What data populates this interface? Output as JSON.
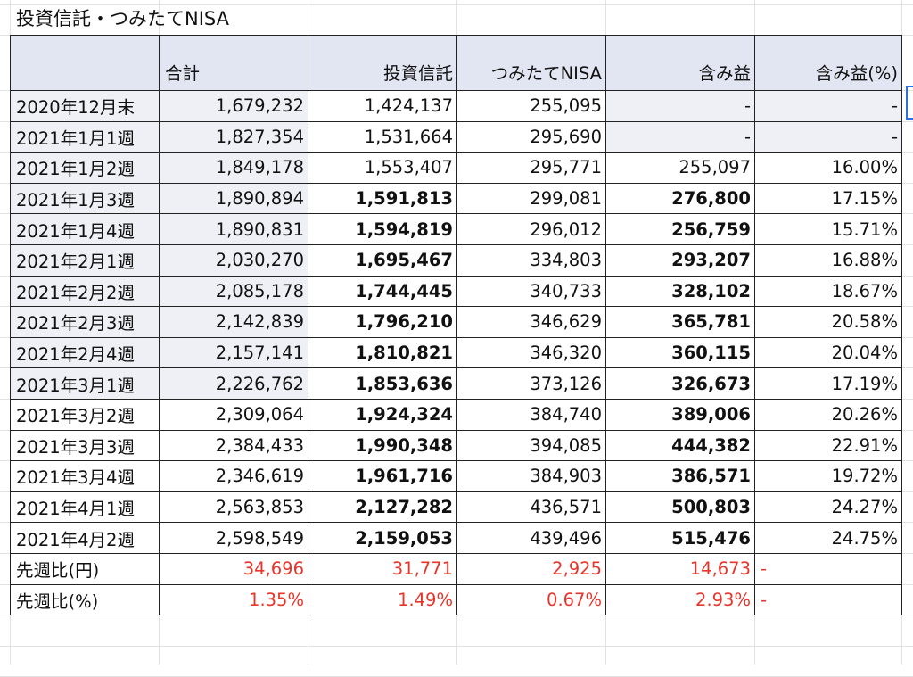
{
  "title": "投資信託・つみたてNISA",
  "headers": [
    "",
    "合計",
    "投資信託",
    "つみたてNISA",
    "含み益",
    "含み益(%)"
  ],
  "rows": [
    {
      "label": "2020年12月末",
      "total": "1,679,232",
      "fund": "1,424,137",
      "nisa": "255,095",
      "gain": "-",
      "gain_pct": "-"
    },
    {
      "label": "2021年1月1週",
      "total": "1,827,354",
      "fund": "1,531,664",
      "nisa": "295,690",
      "gain": "-",
      "gain_pct": "-"
    },
    {
      "label": "2021年1月2週",
      "total": "1,849,178",
      "fund": "1,553,407",
      "nisa": "295,771",
      "gain": "255,097",
      "gain_pct": "16.00%"
    },
    {
      "label": "2021年1月3週",
      "total": "1,890,894",
      "fund": "1,591,813",
      "nisa": "299,081",
      "gain": "276,800",
      "gain_pct": "17.15%"
    },
    {
      "label": "2021年1月4週",
      "total": "1,890,831",
      "fund": "1,594,819",
      "nisa": "296,012",
      "gain": "256,759",
      "gain_pct": "15.71%"
    },
    {
      "label": "2021年2月1週",
      "total": "2,030,270",
      "fund": "1,695,467",
      "nisa": "334,803",
      "gain": "293,207",
      "gain_pct": "16.88%"
    },
    {
      "label": "2021年2月2週",
      "total": "2,085,178",
      "fund": "1,744,445",
      "nisa": "340,733",
      "gain": "328,102",
      "gain_pct": "18.67%"
    },
    {
      "label": "2021年2月3週",
      "total": "2,142,839",
      "fund": "1,796,210",
      "nisa": "346,629",
      "gain": "365,781",
      "gain_pct": "20.58%"
    },
    {
      "label": "2021年2月4週",
      "total": "2,157,141",
      "fund": "1,810,821",
      "nisa": "346,320",
      "gain": "360,115",
      "gain_pct": "20.04%"
    },
    {
      "label": "2021年3月1週",
      "total": "2,226,762",
      "fund": "1,853,636",
      "nisa": "373,126",
      "gain": "326,673",
      "gain_pct": "17.19%"
    },
    {
      "label": "2021年3月2週",
      "total": "2,309,064",
      "fund": "1,924,324",
      "nisa": "384,740",
      "gain": "389,006",
      "gain_pct": "20.26%"
    },
    {
      "label": "2021年3月3週",
      "total": "2,384,433",
      "fund": "1,990,348",
      "nisa": "394,085",
      "gain": "444,382",
      "gain_pct": "22.91%"
    },
    {
      "label": "2021年3月4週",
      "total": "2,346,619",
      "fund": "1,961,716",
      "nisa": "384,903",
      "gain": "386,571",
      "gain_pct": "19.72%"
    },
    {
      "label": "2021年4月1週",
      "total": "2,563,853",
      "fund": "2,127,282",
      "nisa": "436,571",
      "gain": "500,803",
      "gain_pct": "24.27%"
    },
    {
      "label": "2021年4月2週",
      "total": "2,598,549",
      "fund": "2,159,053",
      "nisa": "439,496",
      "gain": "515,476",
      "gain_pct": "24.75%"
    }
  ],
  "diff_rows": [
    {
      "label": "先週比(円)",
      "total": "34,696",
      "fund": "31,771",
      "nisa": "2,925",
      "gain": "14,673",
      "gain_pct": "-"
    },
    {
      "label": "先週比(%)",
      "total": "1.35%",
      "fund": "1.49%",
      "nisa": "0.67%",
      "gain": "2.93%",
      "gain_pct": "-"
    }
  ],
  "colors": {
    "header_bg": "#e2e6f2",
    "shaded_bg": "#eef0f6",
    "negative_red": "#e8352a",
    "selection_blue": "#2f6ee0"
  }
}
